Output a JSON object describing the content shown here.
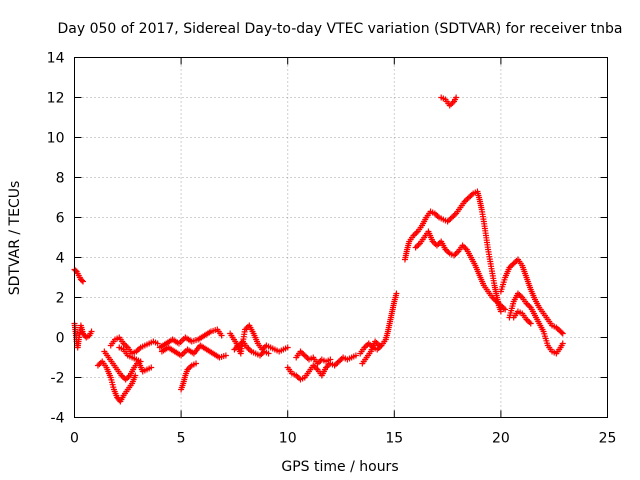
{
  "chart_data": {
    "type": "scatter",
    "title": "Day 050 of 2017, Sidereal Day-to-day VTEC variation (SDTVAR) for receiver tnba",
    "xlabel": "GPS time / hours",
    "ylabel": "SDTVAR / TECUs",
    "xlim": [
      0,
      25
    ],
    "ylim": [
      -4,
      14
    ],
    "xticks": [
      0,
      5,
      10,
      15,
      20,
      25
    ],
    "yticks": [
      -4,
      -2,
      0,
      2,
      4,
      6,
      8,
      10,
      12,
      14
    ],
    "grid": true,
    "marker": "+",
    "series": [
      {
        "name": "SDTVAR",
        "color": "#ff0000",
        "segments": [
          [
            [
              0.0,
              3.4
            ],
            [
              0.1,
              3.3
            ],
            [
              0.2,
              3.1
            ],
            [
              0.3,
              2.9
            ],
            [
              0.4,
              2.8
            ]
          ],
          [
            [
              0.0,
              0.7
            ],
            [
              0.05,
              0.3
            ],
            [
              0.1,
              -0.2
            ],
            [
              0.15,
              -0.5
            ],
            [
              0.2,
              -0.1
            ],
            [
              0.3,
              0.6
            ],
            [
              0.4,
              0.2
            ],
            [
              0.55,
              0.0
            ],
            [
              0.7,
              0.1
            ],
            [
              0.8,
              0.3
            ]
          ],
          [
            [
              1.1,
              -1.4
            ],
            [
              1.3,
              -1.2
            ],
            [
              1.5,
              -1.5
            ],
            [
              1.7,
              -2.0
            ],
            [
              1.85,
              -2.6
            ],
            [
              2.0,
              -3.0
            ],
            [
              2.15,
              -3.2
            ],
            [
              2.3,
              -2.9
            ],
            [
              2.5,
              -2.6
            ],
            [
              2.7,
              -2.3
            ],
            [
              2.85,
              -1.9
            ]
          ],
          [
            [
              1.4,
              -0.7
            ],
            [
              1.6,
              -1.0
            ],
            [
              1.8,
              -1.3
            ],
            [
              2.0,
              -1.6
            ],
            [
              2.2,
              -1.9
            ],
            [
              2.4,
              -2.1
            ],
            [
              2.6,
              -1.9
            ],
            [
              2.8,
              -1.5
            ],
            [
              3.0,
              -1.2
            ],
            [
              3.2,
              -1.7
            ],
            [
              3.4,
              -1.6
            ],
            [
              3.6,
              -1.5
            ]
          ],
          [
            [
              1.7,
              -0.4
            ],
            [
              1.9,
              -0.1
            ],
            [
              2.1,
              0.0
            ],
            [
              2.3,
              -0.3
            ],
            [
              2.5,
              -0.5
            ],
            [
              2.7,
              -0.8
            ],
            [
              2.9,
              -0.7
            ],
            [
              3.1,
              -0.5
            ],
            [
              3.3,
              -0.4
            ],
            [
              3.5,
              -0.3
            ],
            [
              3.7,
              -0.2
            ],
            [
              3.9,
              -0.3
            ]
          ],
          [
            [
              2.1,
              -0.5
            ],
            [
              2.3,
              -0.6
            ],
            [
              2.5,
              -0.9
            ],
            [
              2.7,
              -1.0
            ],
            [
              2.9,
              -1.1
            ],
            [
              3.1,
              -1.2
            ]
          ],
          [
            [
              4.0,
              -0.5
            ],
            [
              4.3,
              -0.3
            ],
            [
              4.6,
              -0.1
            ],
            [
              4.9,
              -0.3
            ],
            [
              5.2,
              0.0
            ],
            [
              5.5,
              -0.2
            ],
            [
              5.8,
              -0.1
            ],
            [
              6.1,
              0.1
            ],
            [
              6.4,
              0.3
            ],
            [
              6.7,
              0.4
            ],
            [
              6.9,
              0.1
            ]
          ],
          [
            [
              4.1,
              -0.7
            ],
            [
              4.4,
              -0.5
            ],
            [
              4.7,
              -0.7
            ],
            [
              5.0,
              -0.9
            ],
            [
              5.3,
              -0.6
            ],
            [
              5.6,
              -0.8
            ],
            [
              5.9,
              -0.4
            ],
            [
              6.2,
              -0.6
            ],
            [
              6.5,
              -0.8
            ],
            [
              6.8,
              -1.0
            ],
            [
              7.1,
              -0.9
            ]
          ],
          [
            [
              5.0,
              -2.6
            ],
            [
              5.1,
              -2.3
            ],
            [
              5.2,
              -1.9
            ],
            [
              5.3,
              -1.6
            ],
            [
              5.5,
              -1.4
            ],
            [
              5.7,
              -1.3
            ]
          ],
          [
            [
              7.3,
              0.2
            ],
            [
              7.6,
              -0.3
            ],
            [
              7.8,
              -0.8
            ],
            [
              8.0,
              0.4
            ],
            [
              8.2,
              0.6
            ],
            [
              8.4,
              0.2
            ],
            [
              8.6,
              -0.3
            ],
            [
              8.8,
              -0.6
            ],
            [
              9.0,
              -0.4
            ],
            [
              9.2,
              -0.5
            ],
            [
              9.4,
              -0.6
            ],
            [
              9.6,
              -0.7
            ],
            [
              9.8,
              -0.6
            ],
            [
              10.0,
              -0.5
            ]
          ],
          [
            [
              7.5,
              -0.6
            ],
            [
              7.7,
              -0.4
            ],
            [
              7.9,
              -0.2
            ],
            [
              8.1,
              -0.5
            ],
            [
              8.3,
              -0.7
            ],
            [
              8.5,
              -0.8
            ],
            [
              8.7,
              -0.9
            ],
            [
              8.9,
              -0.7
            ],
            [
              9.1,
              -0.8
            ]
          ],
          [
            [
              10.0,
              -1.5
            ],
            [
              10.2,
              -1.8
            ],
            [
              10.4,
              -1.9
            ],
            [
              10.6,
              -2.1
            ],
            [
              10.8,
              -2.0
            ],
            [
              11.0,
              -1.7
            ],
            [
              11.2,
              -1.4
            ],
            [
              11.4,
              -1.6
            ],
            [
              11.6,
              -1.9
            ],
            [
              11.8,
              -1.5
            ],
            [
              12.0,
              -1.3
            ],
            [
              12.2,
              -1.4
            ],
            [
              12.4,
              -1.2
            ],
            [
              12.6,
              -1.0
            ],
            [
              12.8,
              -1.1
            ],
            [
              13.0,
              -1.0
            ],
            [
              13.2,
              -0.9
            ]
          ],
          [
            [
              10.4,
              -1.0
            ],
            [
              10.6,
              -0.7
            ],
            [
              10.8,
              -0.9
            ],
            [
              11.0,
              -1.1
            ],
            [
              11.2,
              -1.0
            ],
            [
              11.4,
              -1.3
            ],
            [
              11.6,
              -1.1
            ],
            [
              11.8,
              -1.2
            ],
            [
              12.0,
              -1.1
            ]
          ],
          [
            [
              13.4,
              -0.8
            ],
            [
              13.6,
              -0.5
            ],
            [
              13.8,
              -0.3
            ],
            [
              14.0,
              -0.5
            ],
            [
              14.2,
              -0.6
            ],
            [
              14.4,
              -0.4
            ],
            [
              14.6,
              -0.1
            ],
            [
              14.7,
              0.3
            ],
            [
              14.8,
              0.8
            ],
            [
              14.9,
              1.3
            ],
            [
              15.0,
              1.8
            ],
            [
              15.1,
              2.2
            ]
          ],
          [
            [
              13.5,
              -1.3
            ],
            [
              13.7,
              -1.0
            ],
            [
              13.9,
              -0.7
            ],
            [
              14.1,
              -0.2
            ],
            [
              14.3,
              -0.4
            ]
          ],
          [
            [
              15.5,
              3.9
            ],
            [
              15.6,
              4.4
            ],
            [
              15.7,
              4.8
            ],
            [
              15.9,
              5.1
            ],
            [
              16.1,
              5.3
            ],
            [
              16.3,
              5.6
            ],
            [
              16.5,
              6.0
            ],
            [
              16.7,
              6.3
            ],
            [
              16.9,
              6.2
            ],
            [
              17.1,
              6.0
            ],
            [
              17.3,
              5.9
            ],
            [
              17.5,
              5.8
            ],
            [
              17.7,
              6.0
            ],
            [
              17.9,
              6.2
            ],
            [
              18.1,
              6.5
            ],
            [
              18.3,
              6.8
            ],
            [
              18.5,
              7.0
            ],
            [
              18.7,
              7.2
            ],
            [
              18.9,
              7.3
            ],
            [
              19.0,
              6.9
            ],
            [
              19.1,
              6.4
            ],
            [
              19.2,
              5.8
            ],
            [
              19.3,
              5.1
            ],
            [
              19.4,
              4.4
            ],
            [
              19.5,
              3.8
            ],
            [
              19.6,
              3.2
            ],
            [
              19.7,
              2.6
            ],
            [
              19.8,
              2.1
            ],
            [
              19.9,
              1.6
            ],
            [
              20.0,
              1.3
            ]
          ],
          [
            [
              16.0,
              4.5
            ],
            [
              16.2,
              4.7
            ],
            [
              16.4,
              5.0
            ],
            [
              16.6,
              5.3
            ],
            [
              16.8,
              4.8
            ],
            [
              17.0,
              4.6
            ],
            [
              17.2,
              4.8
            ],
            [
              17.4,
              4.4
            ],
            [
              17.6,
              4.2
            ],
            [
              17.8,
              4.1
            ],
            [
              18.0,
              4.3
            ],
            [
              18.2,
              4.6
            ],
            [
              18.4,
              4.4
            ],
            [
              18.6,
              4.0
            ],
            [
              18.8,
              3.6
            ],
            [
              19.0,
              3.1
            ],
            [
              19.2,
              2.6
            ],
            [
              19.4,
              2.3
            ],
            [
              19.6,
              2.0
            ],
            [
              19.8,
              1.8
            ],
            [
              20.0,
              1.6
            ],
            [
              20.2,
              1.4
            ]
          ],
          [
            [
              17.2,
              12.0
            ],
            [
              17.4,
              11.9
            ],
            [
              17.6,
              11.6
            ],
            [
              17.8,
              11.8
            ],
            [
              17.9,
              12.0
            ]
          ],
          [
            [
              20.0,
              2.3
            ],
            [
              20.2,
              3.0
            ],
            [
              20.4,
              3.5
            ],
            [
              20.6,
              3.7
            ],
            [
              20.8,
              3.9
            ],
            [
              21.0,
              3.6
            ],
            [
              21.2,
              3.0
            ],
            [
              21.4,
              2.4
            ],
            [
              21.6,
              1.9
            ],
            [
              21.8,
              1.5
            ],
            [
              22.0,
              1.2
            ],
            [
              22.2,
              0.9
            ],
            [
              22.4,
              0.6
            ],
            [
              22.6,
              0.5
            ],
            [
              22.8,
              0.3
            ],
            [
              22.9,
              0.2
            ]
          ],
          [
            [
              20.4,
              1.0
            ],
            [
              20.6,
              1.8
            ],
            [
              20.8,
              2.2
            ],
            [
              21.0,
              2.0
            ],
            [
              21.2,
              1.7
            ],
            [
              21.4,
              1.5
            ],
            [
              21.6,
              1.1
            ],
            [
              21.8,
              0.7
            ],
            [
              22.0,
              0.3
            ],
            [
              22.2,
              -0.4
            ],
            [
              22.4,
              -0.7
            ],
            [
              22.6,
              -0.8
            ],
            [
              22.8,
              -0.5
            ],
            [
              22.9,
              -0.3
            ]
          ],
          [
            [
              20.6,
              1.0
            ],
            [
              20.8,
              1.3
            ],
            [
              21.0,
              1.2
            ],
            [
              21.2,
              0.9
            ],
            [
              21.4,
              0.7
            ]
          ]
        ]
      }
    ]
  }
}
